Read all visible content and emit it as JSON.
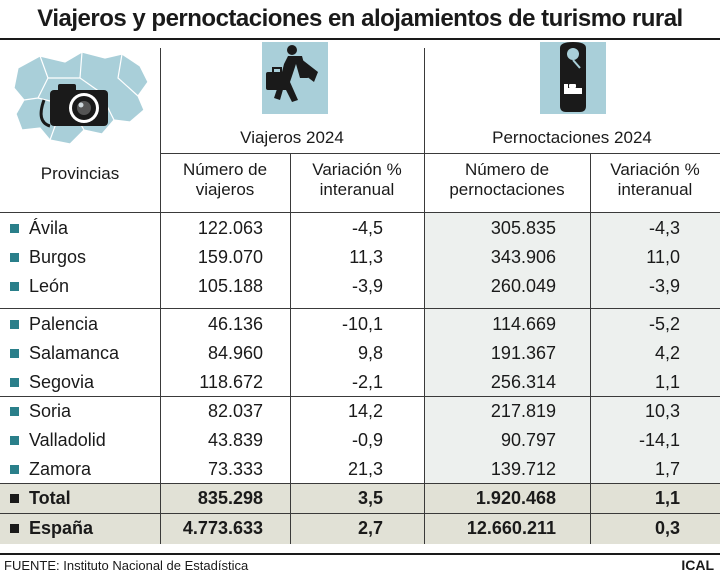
{
  "title": "Viajeros y pernoctaciones en alojamientos de turismo rural",
  "headers": {
    "provincias": "Provincias",
    "viajeros_group": "Viajeros 2024",
    "pernoctaciones_group": "Pernoctaciones 2024",
    "num_viajeros_line1": "Número de",
    "num_viajeros_line2": "viajeros",
    "var_v_line1": "Variación %",
    "var_v_line2": "interanual",
    "num_pern_line1": "Número de",
    "num_pern_line2": "pernoctaciones",
    "var_p_line1": "Variación %",
    "var_p_line2": "interanual"
  },
  "rows": [
    {
      "provincia": "Ávila",
      "viajeros": "122.063",
      "var_viajeros": "-4,5",
      "pernoctaciones": "305.835",
      "var_pernoctaciones": "-4,3"
    },
    {
      "provincia": "Burgos",
      "viajeros": "159.070",
      "var_viajeros": "11,3",
      "pernoctaciones": "343.906",
      "var_pernoctaciones": "11,0"
    },
    {
      "provincia": "León",
      "viajeros": "105.188",
      "var_viajeros": "-3,9",
      "pernoctaciones": "260.049",
      "var_pernoctaciones": "-3,9"
    },
    {
      "provincia": "Palencia",
      "viajeros": "46.136",
      "var_viajeros": "-10,1",
      "pernoctaciones": "114.669",
      "var_pernoctaciones": "-5,2"
    },
    {
      "provincia": "Salamanca",
      "viajeros": "84.960",
      "var_viajeros": "9,8",
      "pernoctaciones": "191.367",
      "var_pernoctaciones": "4,2"
    },
    {
      "provincia": "Segovia",
      "viajeros": "118.672",
      "var_viajeros": "-2,1",
      "pernoctaciones": "256.314",
      "var_pernoctaciones": "1,1"
    },
    {
      "provincia": "Soria",
      "viajeros": "82.037",
      "var_viajeros": "14,2",
      "pernoctaciones": "217.819",
      "var_pernoctaciones": "10,3"
    },
    {
      "provincia": "Valladolid",
      "viajeros": "43.839",
      "var_viajeros": "-0,9",
      "pernoctaciones": "90.797",
      "var_pernoctaciones": "-14,1"
    },
    {
      "provincia": "Zamora",
      "viajeros": "73.333",
      "var_viajeros": "21,3",
      "pernoctaciones": "139.712",
      "var_pernoctaciones": "1,7"
    }
  ],
  "totals": [
    {
      "provincia": "Total",
      "viajeros": "835.298",
      "var_viajeros": "3,5",
      "pernoctaciones": "1.920.468",
      "var_pernoctaciones": "1,1"
    },
    {
      "provincia": "España",
      "viajeros": "4.773.633",
      "var_viajeros": "2,7",
      "pernoctaciones": "12.660.211",
      "var_pernoctaciones": "0,3"
    }
  ],
  "footer": {
    "source": "FUENTE: Instituto Nacional de Estadística",
    "brand": "ICAL"
  },
  "colors": {
    "accent": "#2a7f8a",
    "icon_bg": "#a9cfd9",
    "map_fill": "#a9cfd9",
    "total_bg": "#e1e1d6",
    "pern_bg": "#edf0ee"
  },
  "icons": {
    "map": "castilla-leon-map-camera-icon",
    "viajeros": "traveler-with-suitcase-icon",
    "pernoctaciones": "hotel-door-hanger-icon"
  }
}
